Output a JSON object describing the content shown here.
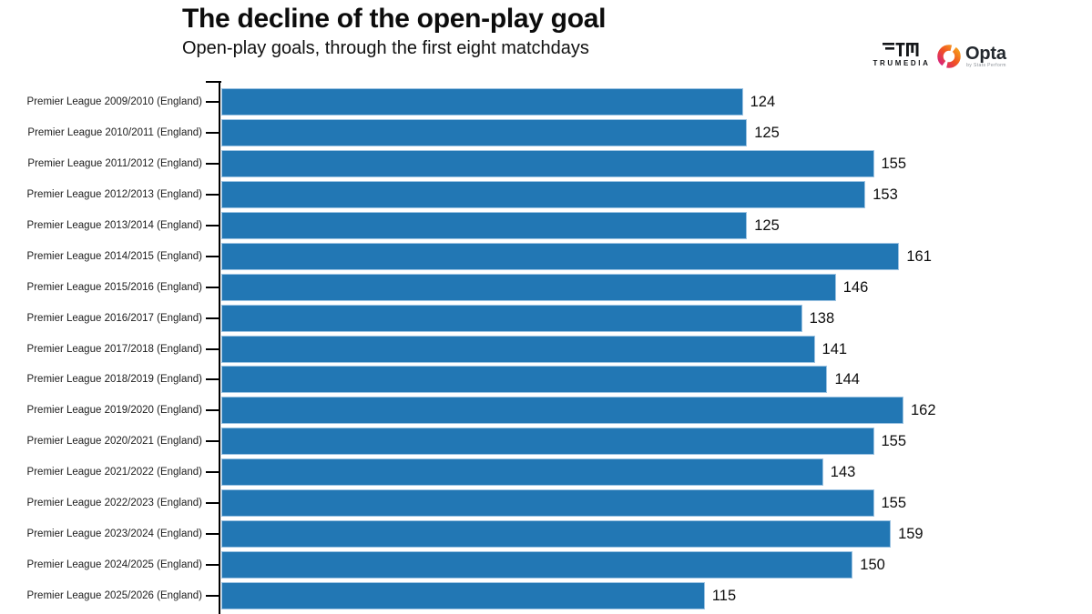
{
  "header": {
    "title": "The decline of the open-play goal",
    "subtitle": "Open-play goals, through the first eight matchdays"
  },
  "branding": {
    "trumedia": {
      "label": "TRUMEDIA"
    },
    "opta": {
      "label": "Opta",
      "sublabel": "by Stats Perform"
    }
  },
  "chart_data": {
    "type": "bar",
    "orientation": "horizontal",
    "title": "The decline of the open-play goal",
    "subtitle": "Open-play goals, through the first eight matchdays",
    "categories": [
      "Premier League 2009/2010 (England)",
      "Premier League 2010/2011 (England)",
      "Premier League 2011/2012 (England)",
      "Premier League 2012/2013 (England)",
      "Premier League 2013/2014 (England)",
      "Premier League 2014/2015 (England)",
      "Premier League 2015/2016 (England)",
      "Premier League 2016/2017 (England)",
      "Premier League 2017/2018 (England)",
      "Premier League 2018/2019 (England)",
      "Premier League 2019/2020 (England)",
      "Premier League 2020/2021 (England)",
      "Premier League 2021/2022 (England)",
      "Premier League 2022/2023 (England)",
      "Premier League 2023/2024 (England)",
      "Premier League 2024/2025 (England)",
      "Premier League 2025/2026 (England)"
    ],
    "values": [
      124,
      125,
      155,
      153,
      125,
      161,
      146,
      138,
      141,
      144,
      162,
      155,
      143,
      155,
      159,
      150,
      115
    ],
    "xlabel": "",
    "ylabel": "",
    "xlim": [
      0,
      207
    ],
    "grid": false,
    "legend": "none",
    "value_labels": true,
    "bar_color": "#2277b4",
    "bar_edge_color": "#9cc3e2",
    "axis_color": "#000000"
  }
}
